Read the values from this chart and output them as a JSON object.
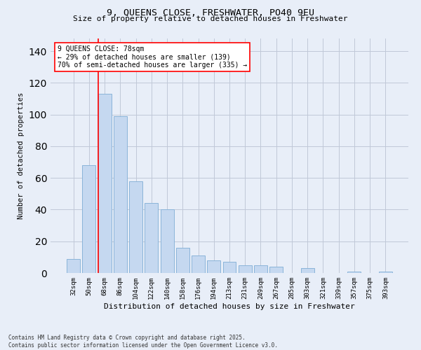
{
  "title_line1": "9, QUEENS CLOSE, FRESHWATER, PO40 9EU",
  "title_line2": "Size of property relative to detached houses in Freshwater",
  "xlabel": "Distribution of detached houses by size in Freshwater",
  "ylabel": "Number of detached properties",
  "categories": [
    "32sqm",
    "50sqm",
    "68sqm",
    "86sqm",
    "104sqm",
    "122sqm",
    "140sqm",
    "158sqm",
    "176sqm",
    "194sqm",
    "213sqm",
    "231sqm",
    "249sqm",
    "267sqm",
    "285sqm",
    "303sqm",
    "321sqm",
    "339sqm",
    "357sqm",
    "375sqm",
    "393sqm"
  ],
  "values": [
    9,
    68,
    113,
    99,
    58,
    44,
    40,
    16,
    11,
    8,
    7,
    5,
    5,
    4,
    0,
    3,
    0,
    0,
    1,
    0,
    1
  ],
  "bar_color": "#c5d8f0",
  "bar_edge_color": "#8ab4d9",
  "vline_color": "red",
  "annotation_text": "9 QUEENS CLOSE: 78sqm\n← 29% of detached houses are smaller (139)\n70% of semi-detached houses are larger (335) →",
  "annotation_box_color": "white",
  "annotation_box_edge": "red",
  "ylim": [
    0,
    148
  ],
  "yticks": [
    0,
    20,
    40,
    60,
    80,
    100,
    120,
    140
  ],
  "grid_color": "#c0c8d8",
  "background_color": "#e8eef8",
  "footer_line1": "Contains HM Land Registry data © Crown copyright and database right 2025.",
  "footer_line2": "Contains public sector information licensed under the Open Government Licence v3.0."
}
